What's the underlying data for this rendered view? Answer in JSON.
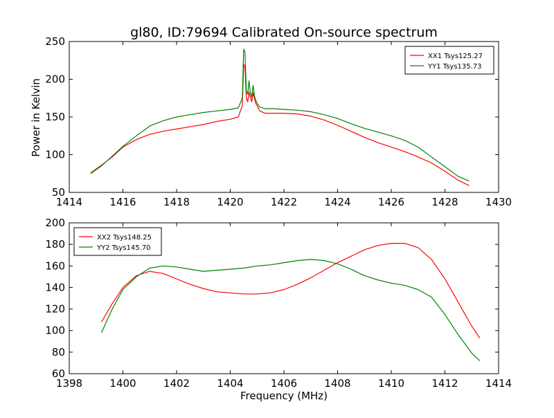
{
  "title": "gl80, ID:79694 Calibrated On-source spectrum",
  "xlabel": "Frequency (MHz)",
  "chart_data": [
    {
      "type": "line",
      "title": "gl80, ID:79694 Calibrated On-source spectrum",
      "xlabel": "",
      "ylabel": "Power in Kelvin",
      "xlim": [
        1414,
        1430
      ],
      "ylim": [
        50,
        250
      ],
      "xticks": [
        1414,
        1416,
        1418,
        1420,
        1422,
        1424,
        1426,
        1428,
        1430
      ],
      "yticks": [
        50,
        100,
        150,
        200,
        250
      ],
      "legend_position": "top-right",
      "series": [
        {
          "name": "XX1 Tsys125.27",
          "color": "#ff0000",
          "x": [
            1414.8,
            1415.2,
            1415.6,
            1416.0,
            1416.5,
            1417.0,
            1417.5,
            1418.0,
            1418.5,
            1419.0,
            1419.5,
            1420.0,
            1420.3,
            1420.45,
            1420.5,
            1420.55,
            1420.6,
            1420.65,
            1420.7,
            1420.75,
            1420.8,
            1420.85,
            1420.9,
            1420.95,
            1421.0,
            1421.1,
            1421.3,
            1421.6,
            1422.0,
            1422.5,
            1423.0,
            1423.5,
            1424.0,
            1424.5,
            1425.0,
            1425.5,
            1426.0,
            1426.5,
            1427.0,
            1427.5,
            1428.0,
            1428.5,
            1428.9
          ],
          "y": [
            76,
            86,
            97,
            110,
            120,
            127,
            131,
            134,
            137,
            140,
            144,
            147,
            150,
            165,
            220,
            215,
            175,
            170,
            183,
            176,
            170,
            182,
            175,
            168,
            165,
            158,
            155,
            155,
            155,
            154,
            151,
            146,
            139,
            131,
            123,
            116,
            110,
            104,
            97,
            89,
            78,
            66,
            59
          ]
        },
        {
          "name": "YY1 Tsys135.73",
          "color": "#008000",
          "x": [
            1414.8,
            1415.2,
            1415.6,
            1416.0,
            1416.5,
            1417.0,
            1417.5,
            1418.0,
            1418.5,
            1419.0,
            1419.5,
            1420.0,
            1420.3,
            1420.45,
            1420.5,
            1420.55,
            1420.6,
            1420.65,
            1420.7,
            1420.75,
            1420.8,
            1420.85,
            1420.9,
            1420.95,
            1421.0,
            1421.1,
            1421.3,
            1421.6,
            1422.0,
            1422.5,
            1423.0,
            1423.5,
            1424.0,
            1424.5,
            1425.0,
            1425.5,
            1426.0,
            1426.5,
            1427.0,
            1427.5,
            1428.0,
            1428.5,
            1428.9
          ],
          "y": [
            75,
            85,
            98,
            111,
            125,
            138,
            145,
            150,
            153,
            156,
            158,
            160,
            162,
            175,
            240,
            235,
            185,
            180,
            198,
            182,
            176,
            192,
            178,
            172,
            168,
            163,
            161,
            161,
            160,
            159,
            157,
            153,
            148,
            141,
            135,
            130,
            125,
            119,
            110,
            97,
            84,
            71,
            65
          ]
        }
      ]
    },
    {
      "type": "line",
      "title": "",
      "xlabel": "Frequency (MHz)",
      "ylabel": "",
      "xlim": [
        1398,
        1414
      ],
      "ylim": [
        60,
        200
      ],
      "xticks": [
        1398,
        1400,
        1402,
        1404,
        1406,
        1408,
        1410,
        1412,
        1414
      ],
      "yticks": [
        60,
        80,
        100,
        120,
        140,
        160,
        180,
        200
      ],
      "legend_position": "top-left",
      "series": [
        {
          "name": "XX2 Tsys148.25",
          "color": "#ff0000",
          "x": [
            1399.2,
            1399.6,
            1400.0,
            1400.5,
            1401.0,
            1401.5,
            1402.0,
            1402.5,
            1403.0,
            1403.5,
            1404.0,
            1404.5,
            1405.0,
            1405.5,
            1406.0,
            1406.5,
            1407.0,
            1407.5,
            1408.0,
            1408.5,
            1409.0,
            1409.5,
            1410.0,
            1410.5,
            1411.0,
            1411.5,
            1412.0,
            1412.5,
            1413.0,
            1413.3
          ],
          "y": [
            108,
            125,
            140,
            151,
            155,
            153,
            148,
            143,
            139,
            136,
            135,
            134,
            134,
            135,
            138,
            143,
            149,
            156,
            163,
            169,
            175,
            179,
            181,
            181,
            177,
            166,
            148,
            126,
            104,
            93
          ]
        },
        {
          "name": "YY2 Tsys145.70",
          "color": "#008000",
          "x": [
            1399.2,
            1399.6,
            1400.0,
            1400.5,
            1401.0,
            1401.5,
            1402.0,
            1402.5,
            1403.0,
            1403.5,
            1404.0,
            1404.5,
            1405.0,
            1405.5,
            1406.0,
            1406.5,
            1407.0,
            1407.5,
            1408.0,
            1408.5,
            1409.0,
            1409.5,
            1410.0,
            1410.5,
            1411.0,
            1411.5,
            1412.0,
            1412.5,
            1413.0,
            1413.3
          ],
          "y": [
            98,
            120,
            138,
            150,
            158,
            160,
            159,
            157,
            155,
            156,
            157,
            158,
            160,
            161,
            163,
            165,
            166,
            165,
            162,
            157,
            151,
            147,
            144,
            142,
            138,
            131,
            115,
            96,
            79,
            72
          ]
        }
      ]
    }
  ]
}
